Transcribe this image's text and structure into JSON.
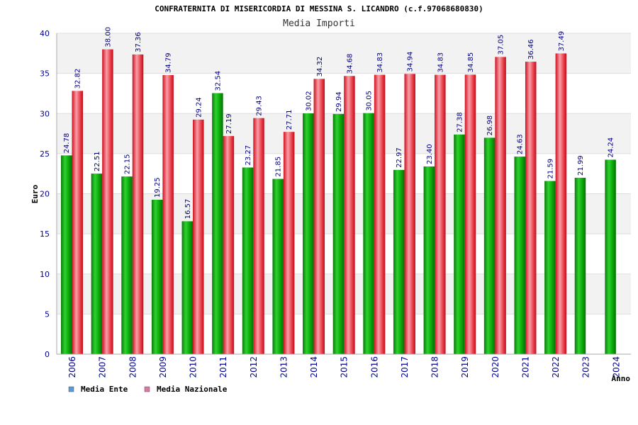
{
  "chart_data": {
    "type": "bar",
    "title": "CONFRATERNITA DI MISERICORDIA DI MESSINA S. LICANDRO (c.f.97068680830)",
    "subtitle": "Media Importi",
    "xlabel": "Anno",
    "ylabel": "Euro",
    "ylim": [
      0,
      40
    ],
    "yticks": [
      0,
      5,
      10,
      15,
      20,
      25,
      30,
      35,
      40
    ],
    "grid": true,
    "legend_position": "bottom-left",
    "categories": [
      "2006",
      "2007",
      "2008",
      "2009",
      "2010",
      "2011",
      "2012",
      "2013",
      "2014",
      "2015",
      "2016",
      "2017",
      "2018",
      "2019",
      "2020",
      "2021",
      "2022",
      "2023",
      "2024"
    ],
    "series": [
      {
        "name": "Media Ente",
        "color": "#00aa00",
        "legend_color": "#5b9bd5",
        "values": [
          24.78,
          22.51,
          22.15,
          19.25,
          16.57,
          32.54,
          23.27,
          21.85,
          30.02,
          29.94,
          30.05,
          22.97,
          23.4,
          27.38,
          26.98,
          24.63,
          21.59,
          21.99,
          24.24
        ],
        "labels": [
          "24.78",
          "22.51",
          "22.15",
          "19.25",
          "16.57",
          "32.54",
          "23.27",
          "21.85",
          "30.02",
          "29.94",
          "30.05",
          "22.97",
          "23.40",
          "27.38",
          "26.98",
          "24.63",
          "21.59",
          "21.99",
          "24.24"
        ]
      },
      {
        "name": "Media Nazionale",
        "color": "#e8202a",
        "legend_color": "#d97aa6",
        "values": [
          32.82,
          38.0,
          37.36,
          34.79,
          29.24,
          27.19,
          29.43,
          27.71,
          34.32,
          34.68,
          34.83,
          34.94,
          34.83,
          34.85,
          37.05,
          36.46,
          37.49,
          null,
          null
        ],
        "labels": [
          "32.82",
          "38.00",
          "37.36",
          "34.79",
          "29.24",
          "27.19",
          "29.43",
          "27.71",
          "34.32",
          "34.68",
          "34.83",
          "34.94",
          "34.83",
          "34.85",
          "37.05",
          "36.46",
          "37.49",
          null,
          null
        ]
      }
    ]
  }
}
